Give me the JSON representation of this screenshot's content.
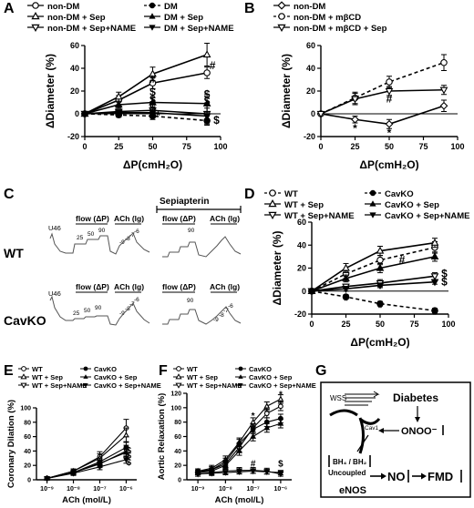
{
  "panels": {
    "A": {
      "letter": "A",
      "legend": [
        "non-DM",
        "non-DM + Sep",
        "non-DM + Sep+NAME",
        "DM",
        "DM + Sep",
        "DM + Sep+NAME"
      ]
    },
    "B": {
      "letter": "B",
      "legend": [
        "non-DM",
        "non-DM + mβCD",
        "non-DM + mβCD + Sep"
      ]
    },
    "C": {
      "letter": "C",
      "sepiapterin": "Sepiapterin",
      "row_labels": [
        "WT",
        "CavKO"
      ],
      "u46": "U46",
      "flow": "flow (ΔP)",
      "ach": "ACh (lg)",
      "p25": "25",
      "p50": "50",
      "p90": "90",
      "m9": "-9",
      "m8": "-8",
      "m7": "-7",
      "m6": "-6"
    },
    "D": {
      "letter": "D",
      "legend": [
        "WT",
        "WT + Sep",
        "WT + Sep+NAME",
        "CavKO",
        "CavKO + Sep",
        "CavKO + Sep+NAME"
      ]
    },
    "E": {
      "letter": "E",
      "legend": [
        "WT",
        "WT + Sep",
        "WT + Sep+NAME",
        "CavKO",
        "CavKO + Sep",
        "CavKO + Sep+NAME"
      ]
    },
    "F": {
      "letter": "F",
      "legend": [
        "WT",
        "WT + Sep",
        "WT + Sep+NAME",
        "CavKO",
        "CavKO + Sep",
        "CavKO + Sep+NAME"
      ]
    },
    "G": {
      "letter": "G",
      "wss": "WSS",
      "diabetes": "Diabetes",
      "onoo": "ONOO⁻",
      "cav1": "Cav1",
      "bh4": "BH₄ / BH₂",
      "uncoupled": "Uncoupled",
      "enos": "eNOS",
      "no": "NO",
      "fmd": "FMD"
    }
  },
  "chart_data": [
    {
      "id": "A",
      "type": "line",
      "xlabel": "ΔP(cmH₂O)",
      "ylabel": "ΔDiameter (%)",
      "xlim": [
        0,
        100
      ],
      "ylim": [
        -20,
        60
      ],
      "xticks": [
        0,
        25,
        50,
        75,
        100
      ],
      "yticks": [
        -20,
        0,
        20,
        40,
        60
      ],
      "x": [
        0,
        25,
        50,
        90
      ],
      "series": [
        {
          "name": "non-DM",
          "values": [
            0,
            12,
            27,
            36
          ],
          "err": [
            0,
            4,
            5,
            5
          ],
          "marker": "circle-open",
          "dash": false
        },
        {
          "name": "non-DM + Sep",
          "values": [
            0,
            15,
            35,
            52
          ],
          "err": [
            0,
            4,
            6,
            10
          ],
          "marker": "triangle-open",
          "dash": false
        },
        {
          "name": "non-DM + Sep+NAME",
          "values": [
            0,
            2,
            3,
            0
          ],
          "err": [
            0,
            2,
            3,
            8
          ],
          "marker": "triangle-down-open",
          "dash": false
        },
        {
          "name": "DM",
          "values": [
            0,
            -1,
            -2,
            -6
          ],
          "err": [
            0,
            2,
            3,
            4
          ],
          "marker": "circle-filled",
          "dash": true
        },
        {
          "name": "DM + Sep",
          "values": [
            0,
            8,
            10,
            9
          ],
          "err": [
            0,
            3,
            4,
            8
          ],
          "marker": "triangle-filled",
          "dash": false
        },
        {
          "name": "DM + Sep+NAME",
          "values": [
            0,
            1,
            1,
            -2
          ],
          "err": [
            0,
            2,
            3,
            7
          ],
          "marker": "triangle-down-filled",
          "dash": false
        }
      ],
      "annotations": [
        {
          "text": "#",
          "x": 50,
          "y": 30
        },
        {
          "text": "#",
          "x": 94,
          "y": 42
        },
        {
          "text": "$",
          "x": 50,
          "y": 19
        },
        {
          "text": "$",
          "x": 50,
          "y": 12
        },
        {
          "text": "$",
          "x": 50,
          "y": 5
        },
        {
          "text": "$",
          "x": 90,
          "y": 17
        },
        {
          "text": "$",
          "x": 90,
          "y": 11
        },
        {
          "text": "$",
          "x": 97,
          "y": -6
        },
        {
          "text": "*",
          "x": 54,
          "y": -2
        }
      ]
    },
    {
      "id": "B",
      "type": "line",
      "xlabel": "ΔP(cmH₂O)",
      "ylabel": "ΔDiameter (%)",
      "xlim": [
        0,
        100
      ],
      "ylim": [
        -20,
        60
      ],
      "xticks": [
        0,
        25,
        50,
        75,
        100
      ],
      "yticks": [
        -20,
        0,
        20,
        40,
        60
      ],
      "x": [
        0,
        25,
        50,
        90
      ],
      "series": [
        {
          "name": "non-DM",
          "values": [
            0,
            -5,
            -9,
            7
          ],
          "err": [
            0,
            3,
            4,
            5
          ],
          "marker": "diamond-open",
          "dash": false
        },
        {
          "name": "non-DM + mβCD",
          "values": [
            0,
            14,
            28,
            45
          ],
          "err": [
            0,
            5,
            5,
            7
          ],
          "marker": "circle-open",
          "dash": true
        },
        {
          "name": "non-DM + mβCD + Sep",
          "values": [
            0,
            13,
            20,
            21
          ],
          "err": [
            0,
            5,
            4,
            4
          ],
          "marker": "triangle-down-open",
          "dash": false
        }
      ],
      "annotations": [
        {
          "text": "#",
          "x": 50,
          "y": 13
        },
        {
          "text": "*",
          "x": 25,
          "y": -13
        },
        {
          "text": "*",
          "x": 50,
          "y": -17
        }
      ]
    },
    {
      "id": "D",
      "type": "line",
      "xlabel": "ΔP(cmH₂O)",
      "ylabel": "ΔDiameter (%)",
      "xlim": [
        0,
        100
      ],
      "ylim": [
        -20,
        60
      ],
      "xticks": [
        0,
        25,
        50,
        75,
        100
      ],
      "yticks": [
        -20,
        0,
        20,
        40,
        60
      ],
      "x": [
        0,
        25,
        50,
        90
      ],
      "series": [
        {
          "name": "WT",
          "values": [
            0,
            15,
            27,
            38
          ],
          "err": [
            0,
            4,
            4,
            5
          ],
          "marker": "circle-open",
          "dash": true
        },
        {
          "name": "WT + Sep",
          "values": [
            0,
            20,
            35,
            42
          ],
          "err": [
            0,
            4,
            4,
            4
          ],
          "marker": "triangle-open",
          "dash": false
        },
        {
          "name": "WT + Sep+NAME",
          "values": [
            0,
            4,
            7,
            13
          ],
          "err": [
            0,
            2,
            3,
            3
          ],
          "marker": "triangle-down-open",
          "dash": false
        },
        {
          "name": "CavKO",
          "values": [
            0,
            -5,
            -11,
            -17
          ],
          "err": [
            0,
            2,
            2,
            2
          ],
          "marker": "circle-filled",
          "dash": true
        },
        {
          "name": "CavKO + Sep",
          "values": [
            0,
            11,
            20,
            30
          ],
          "err": [
            0,
            3,
            4,
            4
          ],
          "marker": "triangle-filled",
          "dash": false
        },
        {
          "name": "CavKO + Sep+NAME",
          "values": [
            0,
            2,
            5,
            8
          ],
          "err": [
            0,
            2,
            2,
            2
          ],
          "marker": "triangle-down-filled",
          "dash": false
        }
      ],
      "annotations": [
        {
          "text": "#",
          "x": 66,
          "y": 27
        },
        {
          "text": "$",
          "x": 97,
          "y": 15
        },
        {
          "text": "$",
          "x": 97,
          "y": 8
        },
        {
          "text": "*",
          "x": 25,
          "y": -9
        },
        {
          "text": "*",
          "x": 50,
          "y": -15
        },
        {
          "text": "*",
          "x": 90,
          "y": -21
        }
      ]
    },
    {
      "id": "E",
      "type": "line",
      "xlabel": "ACh (mol/L)",
      "ylabel": "Coronary Dilation (%)",
      "xlim": [
        -9.4,
        -5.6
      ],
      "ylim": [
        0,
        100
      ],
      "xticks": [
        -9,
        -8,
        -7,
        -6
      ],
      "xticklabels": [
        "10⁻⁹",
        "10⁻⁸",
        "10⁻⁷",
        "10⁻⁶"
      ],
      "yticks": [
        0,
        20,
        40,
        60,
        80,
        100
      ],
      "x": [
        -9,
        -8,
        -7,
        -6
      ],
      "series": [
        {
          "name": "WT",
          "values": [
            2,
            12,
            32,
            72
          ],
          "err": [
            1,
            3,
            7,
            12
          ],
          "marker": "circle-open",
          "dash": false
        },
        {
          "name": "WT + Sep",
          "values": [
            2,
            12,
            30,
            62
          ],
          "err": [
            1,
            3,
            6,
            10
          ],
          "marker": "triangle-open",
          "dash": false
        },
        {
          "name": "WT + Sep+NAME",
          "values": [
            2,
            10,
            22,
            40
          ],
          "err": [
            1,
            3,
            5,
            8
          ],
          "marker": "triangle-down-open",
          "dash": false
        },
        {
          "name": "CavKO",
          "values": [
            2,
            10,
            25,
            45
          ],
          "err": [
            1,
            3,
            5,
            8
          ],
          "marker": "circle-filled",
          "dash": false
        },
        {
          "name": "CavKO + Sep",
          "values": [
            2,
            10,
            23,
            38
          ],
          "err": [
            1,
            3,
            5,
            6
          ],
          "marker": "triangle-filled",
          "dash": false
        },
        {
          "name": "CavKO + Sep+NAME",
          "values": [
            2,
            9,
            18,
            28
          ],
          "err": [
            1,
            3,
            4,
            5
          ],
          "marker": "triangle-down-filled",
          "dash": false
        }
      ],
      "annotations": [
        {
          "text": "$",
          "x": -5.9,
          "y": 40
        },
        {
          "text": "$",
          "x": -5.9,
          "y": 33
        },
        {
          "text": "$",
          "x": -5.9,
          "y": 24
        }
      ]
    },
    {
      "id": "F",
      "type": "line",
      "xlabel": "ACh (mol/L)",
      "ylabel": "Aortic Relaxation (%)",
      "xlim": [
        -9.4,
        -5.6
      ],
      "ylim": [
        0,
        120
      ],
      "xticks": [
        -9,
        -8,
        -7,
        -6
      ],
      "xticklabels": [
        "10⁻⁹",
        "10⁻⁸",
        "10⁻⁷",
        "10⁻⁶"
      ],
      "yticks": [
        0,
        20,
        40,
        60,
        80,
        100,
        120
      ],
      "x": [
        -9,
        -8.5,
        -8,
        -7.5,
        -7,
        -6.5,
        -6
      ],
      "series": [
        {
          "name": "WT",
          "values": [
            10,
            14,
            22,
            45,
            72,
            92,
            102
          ],
          "err": [
            3,
            4,
            5,
            6,
            6,
            6,
            6
          ],
          "marker": "circle-open",
          "dash": false
        },
        {
          "name": "WT + Sep",
          "values": [
            12,
            16,
            28,
            52,
            80,
            102,
            112
          ],
          "err": [
            3,
            4,
            5,
            6,
            6,
            6,
            6
          ],
          "marker": "triangle-open",
          "dash": false
        },
        {
          "name": "WT + Sep+NAME",
          "values": [
            8,
            10,
            12,
            13,
            13,
            12,
            8
          ],
          "err": [
            3,
            3,
            4,
            4,
            4,
            4,
            3
          ],
          "marker": "triangle-down-open",
          "dash": false
        },
        {
          "name": "CavKO",
          "values": [
            12,
            14,
            25,
            50,
            70,
            80,
            85
          ],
          "err": [
            3,
            4,
            5,
            6,
            6,
            6,
            6
          ],
          "marker": "circle-filled",
          "dash": false
        },
        {
          "name": "CavKO + Sep",
          "values": [
            10,
            12,
            20,
            40,
            60,
            72,
            78
          ],
          "err": [
            3,
            4,
            5,
            6,
            6,
            6,
            6
          ],
          "marker": "triangle-filled",
          "dash": false
        },
        {
          "name": "CavKO + Sep+NAME",
          "values": [
            8,
            9,
            10,
            11,
            12,
            11,
            10
          ],
          "err": [
            3,
            3,
            3,
            3,
            3,
            3,
            3
          ],
          "marker": "triangle-down-filled",
          "dash": false
        }
      ],
      "annotations": [
        {
          "text": "*",
          "x": -7,
          "y": 88
        },
        {
          "text": "*",
          "x": -6,
          "y": 118
        },
        {
          "text": "#",
          "x": -7,
          "y": 22
        },
        {
          "text": "$",
          "x": -6,
          "y": 22
        }
      ]
    }
  ]
}
